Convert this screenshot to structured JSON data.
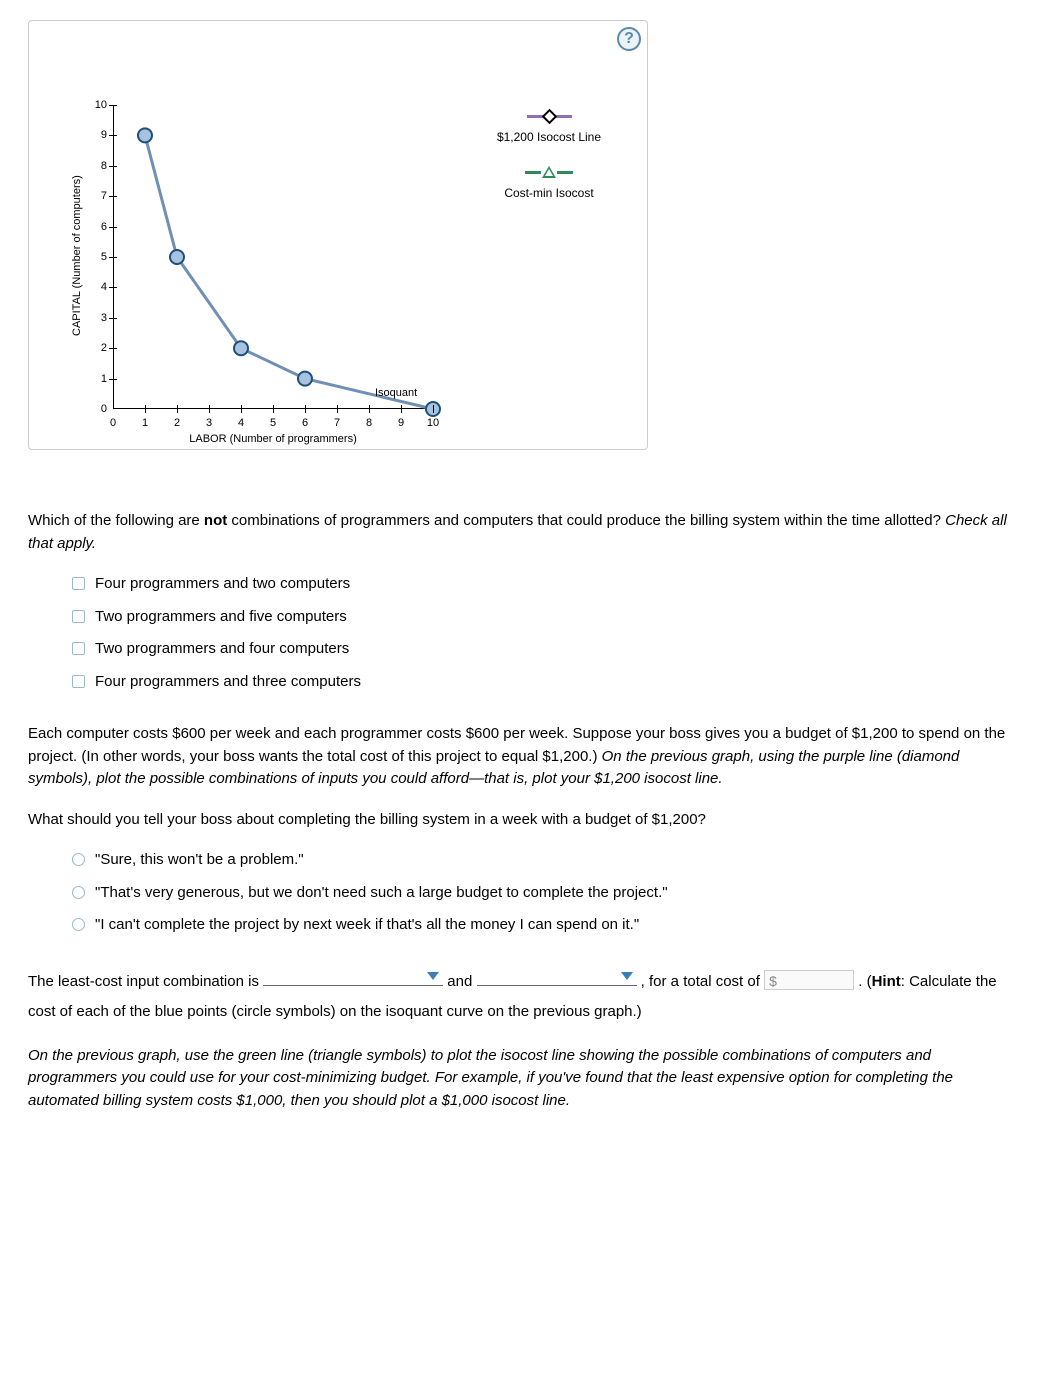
{
  "chart": {
    "type": "line-scatter",
    "xlabel": "LABOR (Number of programmers)",
    "ylabel": "CAPITAL (Number of computers)",
    "xlim": [
      0,
      10
    ],
    "ylim": [
      0,
      10
    ],
    "xtick_step": 1,
    "ytick_step": 1,
    "background_color": "#ffffff",
    "axis_color": "#000000",
    "curve": {
      "label": "Isoquant",
      "color": "#6f8fb5",
      "marker_fill": "#a7c3df",
      "marker_stroke": "#1e4f7a",
      "line_width": 3,
      "marker_radius": 7,
      "points": [
        {
          "x": 1,
          "y": 9
        },
        {
          "x": 2,
          "y": 5
        },
        {
          "x": 4,
          "y": 2
        },
        {
          "x": 6,
          "y": 1
        },
        {
          "x": 10,
          "y": 0
        }
      ]
    },
    "legend": {
      "items": [
        {
          "marker": "diamond",
          "line_color": "#8e6fb5",
          "label": "$1,200 Isocost Line"
        },
        {
          "marker": "triangle",
          "line_color": "#2e8b57",
          "label": "Cost-min Isocost"
        }
      ]
    }
  },
  "help_icon": "?",
  "question1_prefix": "Which of the following are ",
  "question1_bold": "not",
  "question1_suffix": " combinations of programmers and computers that could produce the billing system within the time allotted? ",
  "question1_italic": "Check all that apply.",
  "checkbox_options": [
    "Four programmers and two computers",
    "Two programmers and five computers",
    "Two programmers and four computers",
    "Four programmers and three computers"
  ],
  "para2_plain": "Each computer costs $600 per week and each programmer costs $600 per week. Suppose your boss gives you a budget of $1,200 to spend on the project. (In other words, your boss wants the total cost of this project to equal $1,200.) ",
  "para2_italic": "On the previous graph, using the purple line (diamond symbols), plot the possible combinations of inputs you could afford—that is, plot your $1,200 isocost line.",
  "question2": "What should you tell your boss about completing the billing system in a week with a budget of $1,200?",
  "radio_options": [
    "\"Sure, this won't be a problem.\"",
    "\"That's very generous, but we don't need such a large budget to complete the project.\"",
    "\"I can't complete the project by next week if that's all the money I can spend on it.\""
  ],
  "fill": {
    "t1": "The least-cost input combination is ",
    "t2": " and ",
    "t3": " , for a total cost of ",
    "currency": "$",
    "t4": " . (",
    "hint_label": "Hint",
    "t5": ": Calculate the cost of each of the blue points (circle symbols) on the isoquant curve on the previous graph.)"
  },
  "para_final": "On the previous graph, use the green line (triangle symbols) to plot the isocost line showing the possible combinations of computers and programmers you could use for your cost-minimizing budget. For example, if you've found that the least expensive option for completing the automated billing system costs $1,000, then you should plot a $1,000 isocost line."
}
